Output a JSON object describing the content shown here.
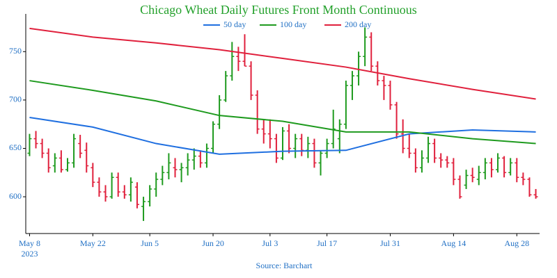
{
  "chart_data": {
    "type": "ohlc",
    "title": "Chicago Wheat Daily Futures Front Month Continuous",
    "x_label": "Source: Barchart",
    "x_year_label": "2023",
    "x": [
      "2023-05-08",
      "2023-05-09",
      "2023-05-10",
      "2023-05-11",
      "2023-05-12",
      "2023-05-15",
      "2023-05-16",
      "2023-05-17",
      "2023-05-18",
      "2023-05-19",
      "2023-05-22",
      "2023-05-23",
      "2023-05-24",
      "2023-05-25",
      "2023-05-26",
      "2023-05-30",
      "2023-05-31",
      "2023-06-01",
      "2023-06-02",
      "2023-06-05",
      "2023-06-06",
      "2023-06-07",
      "2023-06-08",
      "2023-06-09",
      "2023-06-12",
      "2023-06-13",
      "2023-06-14",
      "2023-06-15",
      "2023-06-16",
      "2023-06-20",
      "2023-06-21",
      "2023-06-22",
      "2023-06-23",
      "2023-06-26",
      "2023-06-27",
      "2023-06-28",
      "2023-06-29",
      "2023-06-30",
      "2023-07-03",
      "2023-07-05",
      "2023-07-06",
      "2023-07-07",
      "2023-07-10",
      "2023-07-11",
      "2023-07-12",
      "2023-07-13",
      "2023-07-14",
      "2023-07-17",
      "2023-07-18",
      "2023-07-19",
      "2023-07-20",
      "2023-07-21",
      "2023-07-24",
      "2023-07-25",
      "2023-07-26",
      "2023-07-27",
      "2023-07-28",
      "2023-07-31",
      "2023-08-01",
      "2023-08-02",
      "2023-08-03",
      "2023-08-04",
      "2023-08-07",
      "2023-08-08",
      "2023-08-09",
      "2023-08-10",
      "2023-08-11",
      "2023-08-14",
      "2023-08-15",
      "2023-08-16",
      "2023-08-17",
      "2023-08-18",
      "2023-08-21",
      "2023-08-22",
      "2023-08-23",
      "2023-08-24",
      "2023-08-25",
      "2023-08-28",
      "2023-08-29",
      "2023-08-30",
      "2023-08-31"
    ],
    "open": [
      645,
      660,
      655,
      645,
      632,
      640,
      628,
      635,
      655,
      648,
      630,
      615,
      605,
      600,
      620,
      605,
      602,
      610,
      590,
      595,
      608,
      618,
      625,
      630,
      628,
      630,
      638,
      642,
      635,
      650,
      675,
      700,
      725,
      745,
      740,
      735,
      705,
      670,
      665,
      660,
      640,
      668,
      650,
      660,
      648,
      655,
      635,
      645,
      655,
      660,
      675,
      715,
      725,
      745,
      765,
      735,
      720,
      715,
      695,
      665,
      650,
      645,
      630,
      640,
      655,
      640,
      638,
      635,
      618,
      612,
      622,
      618,
      625,
      635,
      628,
      640,
      625,
      635,
      620,
      618,
      602
    ],
    "high": [
      665,
      668,
      660,
      650,
      645,
      648,
      640,
      665,
      664,
      656,
      635,
      620,
      612,
      625,
      625,
      612,
      620,
      615,
      600,
      612,
      625,
      632,
      645,
      640,
      635,
      645,
      650,
      648,
      655,
      678,
      705,
      730,
      760,
      755,
      768,
      740,
      710,
      680,
      680,
      665,
      672,
      675,
      665,
      665,
      662,
      660,
      648,
      660,
      690,
      680,
      720,
      730,
      750,
      775,
      770,
      740,
      725,
      720,
      698,
      680,
      665,
      650,
      648,
      662,
      660,
      645,
      642,
      640,
      622,
      628,
      630,
      632,
      640,
      640,
      645,
      642,
      640,
      640,
      625,
      620,
      608
    ],
    "low": [
      642,
      650,
      640,
      625,
      625,
      625,
      626,
      630,
      640,
      625,
      610,
      600,
      595,
      598,
      600,
      598,
      595,
      588,
      575,
      590,
      600,
      612,
      618,
      620,
      615,
      622,
      628,
      630,
      630,
      645,
      670,
      698,
      720,
      730,
      735,
      700,
      665,
      655,
      650,
      635,
      638,
      645,
      640,
      642,
      640,
      630,
      622,
      640,
      650,
      645,
      670,
      700,
      715,
      735,
      730,
      715,
      700,
      690,
      660,
      645,
      640,
      625,
      625,
      635,
      635,
      630,
      630,
      612,
      598,
      608,
      615,
      612,
      618,
      620,
      625,
      620,
      622,
      615,
      612,
      600,
      598
    ],
    "close": [
      660,
      655,
      645,
      630,
      640,
      628,
      635,
      660,
      645,
      632,
      615,
      605,
      600,
      620,
      605,
      602,
      615,
      592,
      595,
      608,
      618,
      625,
      635,
      628,
      630,
      638,
      642,
      635,
      650,
      675,
      700,
      725,
      745,
      740,
      735,
      705,
      670,
      665,
      660,
      640,
      668,
      650,
      660,
      648,
      655,
      635,
      645,
      655,
      670,
      675,
      715,
      725,
      745,
      765,
      735,
      720,
      715,
      695,
      665,
      650,
      645,
      630,
      640,
      655,
      640,
      638,
      635,
      618,
      600,
      622,
      620,
      625,
      635,
      628,
      640,
      625,
      635,
      620,
      618,
      602,
      600
    ],
    "up_color": "#1e9a1e",
    "down_color": "#e0203c",
    "series": [
      {
        "name": "50 day",
        "color": "#1f6fe0",
        "x": [
          "2023-05-08",
          "2023-05-22",
          "2023-06-06",
          "2023-06-21",
          "2023-07-06",
          "2023-07-20",
          "2023-08-03",
          "2023-08-17",
          "2023-08-31"
        ],
        "values": [
          682,
          672,
          655,
          644,
          647,
          648,
          665,
          669,
          667
        ]
      },
      {
        "name": "100 day",
        "color": "#1e9a1e",
        "x": [
          "2023-05-08",
          "2023-05-22",
          "2023-06-06",
          "2023-06-21",
          "2023-07-06",
          "2023-07-20",
          "2023-08-03",
          "2023-08-17",
          "2023-08-31"
        ],
        "values": [
          720,
          710,
          699,
          684,
          678,
          667,
          667,
          660,
          655
        ]
      },
      {
        "name": "200 day",
        "color": "#e0203c",
        "x": [
          "2023-05-08",
          "2023-05-22",
          "2023-06-06",
          "2023-06-21",
          "2023-07-06",
          "2023-07-20",
          "2023-08-03",
          "2023-08-17",
          "2023-08-31"
        ],
        "values": [
          774,
          765,
          759,
          752,
          743,
          734,
          722,
          711,
          701
        ]
      }
    ],
    "xticks": [
      {
        "value": 0,
        "label": "May 8"
      },
      {
        "value": 10,
        "label": "May 22"
      },
      {
        "value": 19,
        "label": "Jun 5"
      },
      {
        "value": 29,
        "label": "Jun 20"
      },
      {
        "value": 38,
        "label": "Jul 3"
      },
      {
        "value": 47,
        "label": "Jul 17"
      },
      {
        "value": 57,
        "label": "Jul 31"
      },
      {
        "value": 67,
        "label": "Aug 14"
      },
      {
        "value": 77,
        "label": "Aug 28"
      }
    ],
    "xlim": [
      -0.6,
      80.6
    ],
    "ylim": [
      562,
      789
    ],
    "yticks": [
      600,
      650,
      700,
      750
    ],
    "grid": false
  }
}
